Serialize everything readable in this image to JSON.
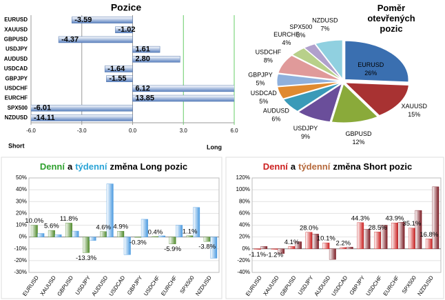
{
  "chart_data": [
    {
      "type": "hbar",
      "title": "Pozice",
      "categories": [
        "EURUSD",
        "XAUUSD",
        "GBPUSD",
        "USDJPY",
        "AUDUSD",
        "USDCAD",
        "GBPJPY",
        "USDCHF",
        "EURCHF",
        "SPX500",
        "NZDUSD"
      ],
      "values": [
        -3.59,
        -1.02,
        -4.37,
        1.61,
        2.8,
        -1.64,
        -1.55,
        6.12,
        13.85,
        -6.01,
        -14.11
      ],
      "value_labels": [
        "-3.59",
        "-1.02",
        "-4.37",
        "1.61",
        "2.80",
        "-1.64",
        "-1.55",
        "6.12",
        "13.85",
        "-6.01",
        "-14.11"
      ],
      "color": "#5b82c0",
      "xlim": [
        -6,
        6
      ],
      "xticks": [
        {
          "value": -6,
          "label": "-6.0"
        },
        {
          "value": -3,
          "label": "-3.0"
        },
        {
          "value": 0,
          "label": "0.0"
        },
        {
          "value": 3,
          "label": "3.0"
        },
        {
          "value": 6,
          "label": "6.0"
        }
      ],
      "annotations": [
        "Short",
        "Long"
      ]
    },
    {
      "type": "pie",
      "title_lines": [
        "Poměr",
        "otevřených",
        "pozic"
      ],
      "categories": [
        "EURUSD",
        "XAUUSD",
        "GBPUSD",
        "USDJPY",
        "AUDUSD",
        "USDCAD",
        "GBPJPY",
        "USDCHF",
        "EURCHF",
        "SPX500",
        "NZDUSD"
      ],
      "values": [
        26,
        15,
        12,
        9,
        6,
        5,
        5,
        8,
        4,
        3,
        7
      ],
      "value_labels": [
        "26%",
        "15%",
        "12%",
        "9%",
        "6%",
        "5%",
        "5%",
        "8%",
        "4%",
        "3%",
        "7%"
      ],
      "colors": [
        "#3a6fb0",
        "#a83232",
        "#8aaa3a",
        "#6a4e9a",
        "#3a9ab8",
        "#e08a30",
        "#8fb0dc",
        "#e09a9a",
        "#b8d08a",
        "#b0a0cc",
        "#90d0e0"
      ]
    },
    {
      "type": "bar",
      "title_parts": [
        "Denní",
        "a",
        "týdenní",
        "změna Long pozic"
      ],
      "title_colors": [
        "#2ea02e",
        "#000000",
        "#29a3d6",
        "#000000"
      ],
      "categories": [
        "EURUSD",
        "XAUUSD",
        "GBPUSD",
        "USDJPY",
        "AUDUSD",
        "USDCAD",
        "GBPJPY",
        "USDCHF",
        "EURCHF",
        "SPX500",
        "NZDUSD"
      ],
      "series": [
        {
          "color": "#4f8a2a",
          "values": [
            10.0,
            5.6,
            11.8,
            -13.3,
            4.6,
            4.9,
            -0.3,
            0.4,
            -5.9,
            1.1,
            -3.8
          ],
          "value_labels": [
            "10.0%",
            "5.6%",
            "11.8%",
            "-13.3%",
            "4.6%",
            "4.9%",
            "-0.3%",
            "0.4%",
            "-5.9%",
            "1.1%",
            "-3.8%"
          ]
        },
        {
          "color": "#4a9ae0",
          "values": [
            3,
            2,
            5,
            -3,
            45,
            -15,
            15,
            1,
            10,
            25,
            -18
          ]
        }
      ],
      "ylim": [
        -30,
        50
      ],
      "yticks": [
        {
          "value": -30,
          "label": "-30%"
        },
        {
          "value": -20,
          "label": "-20%"
        },
        {
          "value": -10,
          "label": "-10%"
        },
        {
          "value": 0,
          "label": "0%"
        },
        {
          "value": 10,
          "label": "10%"
        },
        {
          "value": 20,
          "label": "20%"
        },
        {
          "value": 30,
          "label": "30%"
        },
        {
          "value": 40,
          "label": "40%"
        },
        {
          "value": 50,
          "label": "50%"
        }
      ]
    },
    {
      "type": "bar",
      "title_parts": [
        "Denní",
        "a",
        "týdenní",
        "změna Short pozic"
      ],
      "title_colors": [
        "#cc1f1f",
        "#000000",
        "#b5683a",
        "#000000"
      ],
      "categories": [
        "EURUSD",
        "XAUUSD",
        "GBPUSD",
        "USDJPY",
        "AUDUSD",
        "USDCAD",
        "GBPJPY",
        "USDCHF",
        "EURCHF",
        "SPX500",
        "NZDUSD"
      ],
      "series": [
        {
          "color": "#cc1f1f",
          "values": [
            -1.1,
            -1.2,
            4.1,
            28.0,
            10.1,
            2.2,
            44.3,
            28.5,
            43.9,
            35.1,
            16.8
          ],
          "value_labels": [
            "-1.1%",
            "-1.2%",
            "4.1%",
            "28.0%",
            "10.1%",
            "2.2%",
            "44.3%",
            "28.5%",
            "43.9%",
            "35.1%",
            "16.8%"
          ]
        },
        {
          "color": "#7a1a22",
          "values": [
            4,
            -8,
            12,
            25,
            -18,
            3,
            33,
            40,
            45,
            65,
            105
          ]
        }
      ],
      "ylim": [
        -40,
        120
      ],
      "yticks": [
        {
          "value": -40,
          "label": "-40%"
        },
        {
          "value": -20,
          "label": "-20%"
        },
        {
          "value": 0,
          "label": "0%"
        },
        {
          "value": 20,
          "label": "20%"
        },
        {
          "value": 40,
          "label": "40%"
        },
        {
          "value": 60,
          "label": "60%"
        },
        {
          "value": 80,
          "label": "80%"
        },
        {
          "value": 100,
          "label": "100%"
        },
        {
          "value": 120,
          "label": "120%"
        }
      ]
    }
  ]
}
